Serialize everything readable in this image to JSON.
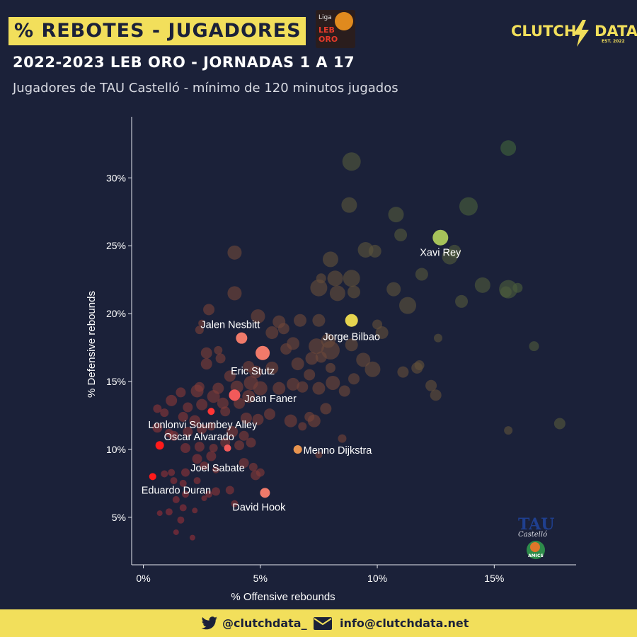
{
  "header": {
    "title": "% REBOTES - JUGADORES",
    "league_logo": {
      "line1": "Liga",
      "line2": "LEB",
      "line3": "ORO"
    },
    "brand_left": "CLUTCH",
    "brand_right": "DATA",
    "brand_est": "EST. 2022",
    "subtitle": "2022-2023 LEB ORO - JORNADAS 1 A 17",
    "description": "Jugadores de TAU Castelló - mínimo de 120 minutos jugados"
  },
  "team_logo": {
    "name": "TAU",
    "subname": "Castelló",
    "badge": "AMICS"
  },
  "footer": {
    "twitter": "@clutchdata_",
    "email": "info@clutchdata.net",
    "twitter_icon": "twitter-bird-icon",
    "email_icon": "envelope-icon"
  },
  "colors": {
    "background": "#1b2139",
    "accent": "#f2df5b",
    "highlight_red": "#ff2020",
    "highlight_pink": "#f06b6b",
    "highlight_orange": "#e8944f",
    "highlight_yellow": "#e6d44f",
    "highlight_green": "#a6c25a"
  },
  "chart_data": {
    "type": "scatter",
    "xlabel": "% Offensive rebounds",
    "ylabel": "% Defensive rebounds",
    "xlim": [
      -0.5,
      18.5
    ],
    "ylim": [
      1.5,
      34.5
    ],
    "xticks": [
      0,
      5,
      10,
      15
    ],
    "xtick_labels": [
      "0%",
      "5%",
      "10%",
      "15%"
    ],
    "yticks": [
      5,
      10,
      15,
      20,
      25,
      30
    ],
    "ytick_labels": [
      "5%",
      "10%",
      "15%",
      "20%",
      "25%",
      "30%"
    ],
    "grid": false,
    "highlighted": [
      {
        "label": "Xavi Rey",
        "x": 12.7,
        "y": 25.6,
        "size": 11,
        "color": "#a6c25a"
      },
      {
        "label": "Jorge Bilbao",
        "x": 8.9,
        "y": 19.5,
        "size": 9,
        "color": "#e6d44f"
      },
      {
        "label": "Jalen Nesbitt",
        "x": 4.2,
        "y": 18.2,
        "size": 8,
        "color": "#f07a6a"
      },
      {
        "label": "Eric Stutz",
        "x": 5.1,
        "y": 17.1,
        "size": 10,
        "color": "#f07a6a"
      },
      {
        "label": "Joan Faner",
        "x": 3.9,
        "y": 14.0,
        "size": 8,
        "color": "#f25a5a"
      },
      {
        "label": "Lonlonvi Soumbey Alley",
        "x": 2.9,
        "y": 12.8,
        "size": 5,
        "color": "#ff3535"
      },
      {
        "label": "Oscar Alvarado",
        "x": 0.7,
        "y": 10.3,
        "size": 6,
        "color": "#ff1a1a"
      },
      {
        "label": "Menno Dijkstra",
        "x": 6.6,
        "y": 10.0,
        "size": 6,
        "color": "#e8944f"
      },
      {
        "label": "Joel Sabate",
        "x": 3.6,
        "y": 10.1,
        "size": 5,
        "color": "#f25a5a"
      },
      {
        "label": "Eduardo Duran",
        "x": 0.4,
        "y": 8.0,
        "size": 5,
        "color": "#ff1a1a"
      },
      {
        "label": "David Hook",
        "x": 5.2,
        "y": 6.8,
        "size": 7,
        "color": "#f07a6a"
      }
    ],
    "others": [
      {
        "x": 8.9,
        "y": 31.2,
        "s": 13
      },
      {
        "x": 15.6,
        "y": 32.2,
        "s": 11
      },
      {
        "x": 10.8,
        "y": 27.3,
        "s": 11
      },
      {
        "x": 13.9,
        "y": 27.9,
        "s": 13
      },
      {
        "x": 8.8,
        "y": 28.0,
        "s": 11
      },
      {
        "x": 11.0,
        "y": 25.8,
        "s": 9
      },
      {
        "x": 9.5,
        "y": 24.7,
        "s": 11
      },
      {
        "x": 9.9,
        "y": 24.6,
        "s": 9
      },
      {
        "x": 13.1,
        "y": 24.2,
        "s": 11
      },
      {
        "x": 13.3,
        "y": 24.6,
        "s": 9
      },
      {
        "x": 8.0,
        "y": 24.0,
        "s": 11
      },
      {
        "x": 3.9,
        "y": 24.5,
        "s": 10
      },
      {
        "x": 11.9,
        "y": 22.9,
        "s": 9
      },
      {
        "x": 7.6,
        "y": 22.6,
        "s": 7
      },
      {
        "x": 8.2,
        "y": 22.6,
        "s": 11
      },
      {
        "x": 8.9,
        "y": 22.6,
        "s": 12
      },
      {
        "x": 7.5,
        "y": 21.9,
        "s": 12
      },
      {
        "x": 8.3,
        "y": 21.5,
        "s": 11
      },
      {
        "x": 9.0,
        "y": 21.6,
        "s": 9
      },
      {
        "x": 10.7,
        "y": 21.8,
        "s": 10
      },
      {
        "x": 14.5,
        "y": 22.1,
        "s": 11
      },
      {
        "x": 15.6,
        "y": 21.8,
        "s": 13
      },
      {
        "x": 15.5,
        "y": 21.6,
        "s": 8
      },
      {
        "x": 16.0,
        "y": 21.9,
        "s": 7
      },
      {
        "x": 3.9,
        "y": 21.5,
        "s": 10
      },
      {
        "x": 11.3,
        "y": 20.6,
        "s": 12
      },
      {
        "x": 13.6,
        "y": 20.9,
        "s": 9
      },
      {
        "x": 2.8,
        "y": 20.3,
        "s": 8
      },
      {
        "x": 4.9,
        "y": 19.8,
        "s": 10
      },
      {
        "x": 5.8,
        "y": 19.4,
        "s": 9
      },
      {
        "x": 6.7,
        "y": 19.5,
        "s": 9
      },
      {
        "x": 7.5,
        "y": 19.5,
        "s": 9
      },
      {
        "x": 10.0,
        "y": 19.2,
        "s": 7
      },
      {
        "x": 10.2,
        "y": 18.6,
        "s": 9
      },
      {
        "x": 12.6,
        "y": 18.2,
        "s": 6
      },
      {
        "x": 2.4,
        "y": 18.8,
        "s": 6
      },
      {
        "x": 2.5,
        "y": 19.3,
        "s": 5
      },
      {
        "x": 5.5,
        "y": 18.6,
        "s": 9
      },
      {
        "x": 6.0,
        "y": 18.9,
        "s": 8
      },
      {
        "x": 6.4,
        "y": 17.8,
        "s": 9
      },
      {
        "x": 6.1,
        "y": 17.4,
        "s": 8
      },
      {
        "x": 7.4,
        "y": 17.6,
        "s": 11
      },
      {
        "x": 8.0,
        "y": 17.3,
        "s": 13
      },
      {
        "x": 7.9,
        "y": 18.0,
        "s": 10
      },
      {
        "x": 8.9,
        "y": 17.7,
        "s": 9
      },
      {
        "x": 9.4,
        "y": 16.6,
        "s": 10
      },
      {
        "x": 9.8,
        "y": 15.9,
        "s": 11
      },
      {
        "x": 7.2,
        "y": 16.7,
        "s": 9
      },
      {
        "x": 7.6,
        "y": 16.8,
        "s": 8
      },
      {
        "x": 8.0,
        "y": 16.0,
        "s": 7
      },
      {
        "x": 11.1,
        "y": 15.7,
        "s": 8
      },
      {
        "x": 11.7,
        "y": 16.0,
        "s": 8
      },
      {
        "x": 11.8,
        "y": 16.2,
        "s": 7
      },
      {
        "x": 12.3,
        "y": 14.7,
        "s": 8
      },
      {
        "x": 12.5,
        "y": 14.0,
        "s": 8
      },
      {
        "x": 16.7,
        "y": 17.6,
        "s": 7
      },
      {
        "x": 2.7,
        "y": 17.1,
        "s": 8
      },
      {
        "x": 3.2,
        "y": 17.3,
        "s": 6
      },
      {
        "x": 3.3,
        "y": 16.7,
        "s": 7
      },
      {
        "x": 2.7,
        "y": 16.3,
        "s": 8
      },
      {
        "x": 3.7,
        "y": 15.4,
        "s": 8
      },
      {
        "x": 4.5,
        "y": 16.1,
        "s": 8
      },
      {
        "x": 4.8,
        "y": 15.7,
        "s": 9
      },
      {
        "x": 5.5,
        "y": 16.0,
        "s": 9
      },
      {
        "x": 6.6,
        "y": 16.3,
        "s": 9
      },
      {
        "x": 7.1,
        "y": 15.5,
        "s": 8
      },
      {
        "x": 7.5,
        "y": 14.5,
        "s": 9
      },
      {
        "x": 8.1,
        "y": 14.9,
        "s": 10
      },
      {
        "x": 8.6,
        "y": 14.3,
        "s": 8
      },
      {
        "x": 9.0,
        "y": 15.2,
        "s": 8
      },
      {
        "x": 2.3,
        "y": 14.3,
        "s": 9
      },
      {
        "x": 1.6,
        "y": 14.2,
        "s": 7
      },
      {
        "x": 1.2,
        "y": 13.6,
        "s": 8
      },
      {
        "x": 2.4,
        "y": 14.6,
        "s": 7
      },
      {
        "x": 3.2,
        "y": 14.5,
        "s": 8
      },
      {
        "x": 3.0,
        "y": 13.9,
        "s": 9
      },
      {
        "x": 4.0,
        "y": 14.6,
        "s": 9
      },
      {
        "x": 4.6,
        "y": 14.9,
        "s": 10
      },
      {
        "x": 5.0,
        "y": 14.5,
        "s": 10
      },
      {
        "x": 5.8,
        "y": 14.5,
        "s": 9
      },
      {
        "x": 6.4,
        "y": 14.8,
        "s": 9
      },
      {
        "x": 6.8,
        "y": 14.6,
        "s": 8
      },
      {
        "x": 4.1,
        "y": 13.4,
        "s": 8
      },
      {
        "x": 4.5,
        "y": 13.9,
        "s": 9
      },
      {
        "x": 3.4,
        "y": 13.4,
        "s": 8
      },
      {
        "x": 2.5,
        "y": 13.3,
        "s": 8
      },
      {
        "x": 1.9,
        "y": 13.1,
        "s": 7
      },
      {
        "x": 0.6,
        "y": 13.0,
        "s": 6
      },
      {
        "x": 0.9,
        "y": 12.7,
        "s": 6
      },
      {
        "x": 1.7,
        "y": 12.4,
        "s": 7
      },
      {
        "x": 2.2,
        "y": 12.1,
        "s": 8
      },
      {
        "x": 3.5,
        "y": 12.8,
        "s": 7
      },
      {
        "x": 4.4,
        "y": 12.3,
        "s": 8
      },
      {
        "x": 4.9,
        "y": 12.2,
        "s": 8
      },
      {
        "x": 5.4,
        "y": 12.6,
        "s": 8
      },
      {
        "x": 6.3,
        "y": 12.1,
        "s": 9
      },
      {
        "x": 7.3,
        "y": 12.1,
        "s": 9
      },
      {
        "x": 7.8,
        "y": 13.0,
        "s": 8
      },
      {
        "x": 7.1,
        "y": 12.4,
        "s": 7
      },
      {
        "x": 6.8,
        "y": 11.7,
        "s": 6
      },
      {
        "x": 0.6,
        "y": 11.6,
        "s": 7
      },
      {
        "x": 1.1,
        "y": 11.2,
        "s": 6
      },
      {
        "x": 1.3,
        "y": 11.0,
        "s": 7
      },
      {
        "x": 1.9,
        "y": 11.3,
        "s": 7
      },
      {
        "x": 2.5,
        "y": 11.5,
        "s": 7
      },
      {
        "x": 2.9,
        "y": 11.7,
        "s": 6
      },
      {
        "x": 3.8,
        "y": 11.3,
        "s": 8
      },
      {
        "x": 4.3,
        "y": 11.0,
        "s": 7
      },
      {
        "x": 8.5,
        "y": 10.8,
        "s": 6
      },
      {
        "x": 15.6,
        "y": 11.4,
        "s": 6
      },
      {
        "x": 17.8,
        "y": 11.9,
        "s": 8
      },
      {
        "x": 1.8,
        "y": 10.1,
        "s": 7
      },
      {
        "x": 2.4,
        "y": 10.2,
        "s": 7
      },
      {
        "x": 3.0,
        "y": 10.1,
        "s": 6
      },
      {
        "x": 3.5,
        "y": 10.5,
        "s": 7
      },
      {
        "x": 4.1,
        "y": 10.3,
        "s": 7
      },
      {
        "x": 4.6,
        "y": 10.5,
        "s": 7
      },
      {
        "x": 2.9,
        "y": 9.5,
        "s": 7
      },
      {
        "x": 2.3,
        "y": 9.3,
        "s": 7
      },
      {
        "x": 2.6,
        "y": 8.8,
        "s": 6
      },
      {
        "x": 4.3,
        "y": 9.0,
        "s": 7
      },
      {
        "x": 4.7,
        "y": 8.7,
        "s": 6
      },
      {
        "x": 7.5,
        "y": 9.6,
        "s": 5
      },
      {
        "x": 0.9,
        "y": 8.2,
        "s": 5
      },
      {
        "x": 1.2,
        "y": 8.3,
        "s": 5
      },
      {
        "x": 1.8,
        "y": 8.3,
        "s": 6
      },
      {
        "x": 3.1,
        "y": 8.5,
        "s": 5
      },
      {
        "x": 4.8,
        "y": 8.1,
        "s": 7
      },
      {
        "x": 5.0,
        "y": 8.3,
        "s": 6
      },
      {
        "x": 1.3,
        "y": 7.7,
        "s": 5
      },
      {
        "x": 1.7,
        "y": 7.5,
        "s": 5
      },
      {
        "x": 2.3,
        "y": 7.7,
        "s": 5
      },
      {
        "x": 3.7,
        "y": 7.0,
        "s": 6
      },
      {
        "x": 2.8,
        "y": 6.7,
        "s": 5
      },
      {
        "x": 2.6,
        "y": 6.4,
        "s": 4
      },
      {
        "x": 1.4,
        "y": 6.3,
        "s": 5
      },
      {
        "x": 1.8,
        "y": 6.7,
        "s": 5
      },
      {
        "x": 3.1,
        "y": 6.9,
        "s": 6
      },
      {
        "x": 3.9,
        "y": 6.0,
        "s": 5
      },
      {
        "x": 1.1,
        "y": 5.4,
        "s": 5
      },
      {
        "x": 1.7,
        "y": 5.7,
        "s": 5
      },
      {
        "x": 2.2,
        "y": 5.5,
        "s": 4
      },
      {
        "x": 0.7,
        "y": 5.3,
        "s": 4
      },
      {
        "x": 1.6,
        "y": 4.8,
        "s": 5
      },
      {
        "x": 1.4,
        "y": 3.9,
        "s": 4
      },
      {
        "x": 2.1,
        "y": 3.5,
        "s": 4
      }
    ]
  }
}
